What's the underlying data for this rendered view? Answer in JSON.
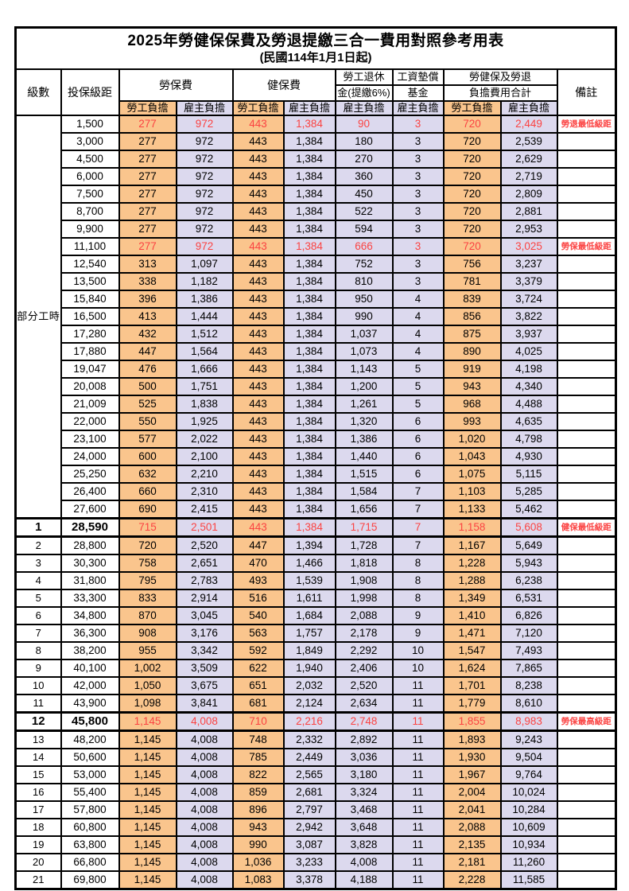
{
  "title": "2025年勞健保保費及勞退提繳三合一費用對照參考用表",
  "subtitle": "(民國114年1月1日起)",
  "colors": {
    "employee_bg": "#FAC58D",
    "employer_bg": "#DCD9EE",
    "highlight_red": "#FB4342",
    "border": "#000000"
  },
  "header": {
    "level": "級數",
    "bracket": "投保級距",
    "labor_ins": "勞保費",
    "health_ins": "健保費",
    "pension_line1": "勞工退休",
    "pension_line2": "金(提繳6%)",
    "wage_fund_line1": "工資墊償",
    "wage_fund_line2": "基金",
    "total_line1": "勞健保及勞退",
    "total_line2": "負擔費用合計",
    "note": "備註",
    "employee": "勞工負擔",
    "employer": "雇主負擔"
  },
  "part_time": {
    "label": "部分工時",
    "span": 23
  },
  "rows": [
    {
      "level": "",
      "bracket": "1,500",
      "v": [
        "277",
        "972",
        "443",
        "1,384",
        "90",
        "3",
        "720",
        "2,449"
      ],
      "note": "勞退最低級距",
      "red": true,
      "bold": false
    },
    {
      "level": "",
      "bracket": "3,000",
      "v": [
        "277",
        "972",
        "443",
        "1,384",
        "180",
        "3",
        "720",
        "2,539"
      ],
      "note": "",
      "red": false,
      "bold": false
    },
    {
      "level": "",
      "bracket": "4,500",
      "v": [
        "277",
        "972",
        "443",
        "1,384",
        "270",
        "3",
        "720",
        "2,629"
      ],
      "note": "",
      "red": false,
      "bold": false
    },
    {
      "level": "",
      "bracket": "6,000",
      "v": [
        "277",
        "972",
        "443",
        "1,384",
        "360",
        "3",
        "720",
        "2,719"
      ],
      "note": "",
      "red": false,
      "bold": false
    },
    {
      "level": "",
      "bracket": "7,500",
      "v": [
        "277",
        "972",
        "443",
        "1,384",
        "450",
        "3",
        "720",
        "2,809"
      ],
      "note": "",
      "red": false,
      "bold": false
    },
    {
      "level": "",
      "bracket": "8,700",
      "v": [
        "277",
        "972",
        "443",
        "1,384",
        "522",
        "3",
        "720",
        "2,881"
      ],
      "note": "",
      "red": false,
      "bold": false
    },
    {
      "level": "",
      "bracket": "9,900",
      "v": [
        "277",
        "972",
        "443",
        "1,384",
        "594",
        "3",
        "720",
        "2,953"
      ],
      "note": "",
      "red": false,
      "bold": false
    },
    {
      "level": "",
      "bracket": "11,100",
      "v": [
        "277",
        "972",
        "443",
        "1,384",
        "666",
        "3",
        "720",
        "3,025"
      ],
      "note": "勞保最低級距",
      "red": true,
      "bold": false
    },
    {
      "level": "",
      "bracket": "12,540",
      "v": [
        "313",
        "1,097",
        "443",
        "1,384",
        "752",
        "3",
        "756",
        "3,237"
      ],
      "note": "",
      "red": false,
      "bold": false
    },
    {
      "level": "",
      "bracket": "13,500",
      "v": [
        "338",
        "1,182",
        "443",
        "1,384",
        "810",
        "3",
        "781",
        "3,379"
      ],
      "note": "",
      "red": false,
      "bold": false
    },
    {
      "level": "",
      "bracket": "15,840",
      "v": [
        "396",
        "1,386",
        "443",
        "1,384",
        "950",
        "4",
        "839",
        "3,724"
      ],
      "note": "",
      "red": false,
      "bold": false
    },
    {
      "level": "",
      "bracket": "16,500",
      "v": [
        "413",
        "1,444",
        "443",
        "1,384",
        "990",
        "4",
        "856",
        "3,822"
      ],
      "note": "",
      "red": false,
      "bold": false
    },
    {
      "level": "",
      "bracket": "17,280",
      "v": [
        "432",
        "1,512",
        "443",
        "1,384",
        "1,037",
        "4",
        "875",
        "3,937"
      ],
      "note": "",
      "red": false,
      "bold": false
    },
    {
      "level": "",
      "bracket": "17,880",
      "v": [
        "447",
        "1,564",
        "443",
        "1,384",
        "1,073",
        "4",
        "890",
        "4,025"
      ],
      "note": "",
      "red": false,
      "bold": false
    },
    {
      "level": "",
      "bracket": "19,047",
      "v": [
        "476",
        "1,666",
        "443",
        "1,384",
        "1,143",
        "5",
        "919",
        "4,198"
      ],
      "note": "",
      "red": false,
      "bold": false
    },
    {
      "level": "",
      "bracket": "20,008",
      "v": [
        "500",
        "1,751",
        "443",
        "1,384",
        "1,200",
        "5",
        "943",
        "4,340"
      ],
      "note": "",
      "red": false,
      "bold": false
    },
    {
      "level": "",
      "bracket": "21,009",
      "v": [
        "525",
        "1,838",
        "443",
        "1,384",
        "1,261",
        "5",
        "968",
        "4,488"
      ],
      "note": "",
      "red": false,
      "bold": false
    },
    {
      "level": "",
      "bracket": "22,000",
      "v": [
        "550",
        "1,925",
        "443",
        "1,384",
        "1,320",
        "6",
        "993",
        "4,635"
      ],
      "note": "",
      "red": false,
      "bold": false
    },
    {
      "level": "",
      "bracket": "23,100",
      "v": [
        "577",
        "2,022",
        "443",
        "1,384",
        "1,386",
        "6",
        "1,020",
        "4,798"
      ],
      "note": "",
      "red": false,
      "bold": false
    },
    {
      "level": "",
      "bracket": "24,000",
      "v": [
        "600",
        "2,100",
        "443",
        "1,384",
        "1,440",
        "6",
        "1,043",
        "4,930"
      ],
      "note": "",
      "red": false,
      "bold": false
    },
    {
      "level": "",
      "bracket": "25,250",
      "v": [
        "632",
        "2,210",
        "443",
        "1,384",
        "1,515",
        "6",
        "1,075",
        "5,115"
      ],
      "note": "",
      "red": false,
      "bold": false
    },
    {
      "level": "",
      "bracket": "26,400",
      "v": [
        "660",
        "2,310",
        "443",
        "1,384",
        "1,584",
        "7",
        "1,103",
        "5,285"
      ],
      "note": "",
      "red": false,
      "bold": false
    },
    {
      "level": "",
      "bracket": "27,600",
      "v": [
        "690",
        "2,415",
        "443",
        "1,384",
        "1,656",
        "7",
        "1,133",
        "5,462"
      ],
      "note": "",
      "red": false,
      "bold": false
    },
    {
      "level": "1",
      "bracket": "28,590",
      "v": [
        "715",
        "2,501",
        "443",
        "1,384",
        "1,715",
        "7",
        "1,158",
        "5,608"
      ],
      "note": "健保最低級距",
      "red": true,
      "bold": true
    },
    {
      "level": "2",
      "bracket": "28,800",
      "v": [
        "720",
        "2,520",
        "447",
        "1,394",
        "1,728",
        "7",
        "1,167",
        "5,649"
      ],
      "note": "",
      "red": false,
      "bold": false
    },
    {
      "level": "3",
      "bracket": "30,300",
      "v": [
        "758",
        "2,651",
        "470",
        "1,466",
        "1,818",
        "8",
        "1,228",
        "5,943"
      ],
      "note": "",
      "red": false,
      "bold": false
    },
    {
      "level": "4",
      "bracket": "31,800",
      "v": [
        "795",
        "2,783",
        "493",
        "1,539",
        "1,908",
        "8",
        "1,288",
        "6,238"
      ],
      "note": "",
      "red": false,
      "bold": false
    },
    {
      "level": "5",
      "bracket": "33,300",
      "v": [
        "833",
        "2,914",
        "516",
        "1,611",
        "1,998",
        "8",
        "1,349",
        "6,531"
      ],
      "note": "",
      "red": false,
      "bold": false
    },
    {
      "level": "6",
      "bracket": "34,800",
      "v": [
        "870",
        "3,045",
        "540",
        "1,684",
        "2,088",
        "9",
        "1,410",
        "6,826"
      ],
      "note": "",
      "red": false,
      "bold": false
    },
    {
      "level": "7",
      "bracket": "36,300",
      "v": [
        "908",
        "3,176",
        "563",
        "1,757",
        "2,178",
        "9",
        "1,471",
        "7,120"
      ],
      "note": "",
      "red": false,
      "bold": false
    },
    {
      "level": "8",
      "bracket": "38,200",
      "v": [
        "955",
        "3,342",
        "592",
        "1,849",
        "2,292",
        "10",
        "1,547",
        "7,493"
      ],
      "note": "",
      "red": false,
      "bold": false
    },
    {
      "level": "9",
      "bracket": "40,100",
      "v": [
        "1,002",
        "3,509",
        "622",
        "1,940",
        "2,406",
        "10",
        "1,624",
        "7,865"
      ],
      "note": "",
      "red": false,
      "bold": false
    },
    {
      "level": "10",
      "bracket": "42,000",
      "v": [
        "1,050",
        "3,675",
        "651",
        "2,032",
        "2,520",
        "11",
        "1,701",
        "8,238"
      ],
      "note": "",
      "red": false,
      "bold": false
    },
    {
      "level": "11",
      "bracket": "43,900",
      "v": [
        "1,098",
        "3,841",
        "681",
        "2,124",
        "2,634",
        "11",
        "1,779",
        "8,610"
      ],
      "note": "",
      "red": false,
      "bold": false
    },
    {
      "level": "12",
      "bracket": "45,800",
      "v": [
        "1,145",
        "4,008",
        "710",
        "2,216",
        "2,748",
        "11",
        "1,855",
        "8,983"
      ],
      "note": "勞保最高級距",
      "red": true,
      "bold": true
    },
    {
      "level": "13",
      "bracket": "48,200",
      "v": [
        "1,145",
        "4,008",
        "748",
        "2,332",
        "2,892",
        "11",
        "1,893",
        "9,243"
      ],
      "note": "",
      "red": false,
      "bold": false
    },
    {
      "level": "14",
      "bracket": "50,600",
      "v": [
        "1,145",
        "4,008",
        "785",
        "2,449",
        "3,036",
        "11",
        "1,930",
        "9,504"
      ],
      "note": "",
      "red": false,
      "bold": false
    },
    {
      "level": "15",
      "bracket": "53,000",
      "v": [
        "1,145",
        "4,008",
        "822",
        "2,565",
        "3,180",
        "11",
        "1,967",
        "9,764"
      ],
      "note": "",
      "red": false,
      "bold": false
    },
    {
      "level": "16",
      "bracket": "55,400",
      "v": [
        "1,145",
        "4,008",
        "859",
        "2,681",
        "3,324",
        "11",
        "2,004",
        "10,024"
      ],
      "note": "",
      "red": false,
      "bold": false
    },
    {
      "level": "17",
      "bracket": "57,800",
      "v": [
        "1,145",
        "4,008",
        "896",
        "2,797",
        "3,468",
        "11",
        "2,041",
        "10,284"
      ],
      "note": "",
      "red": false,
      "bold": false
    },
    {
      "level": "18",
      "bracket": "60,800",
      "v": [
        "1,145",
        "4,008",
        "943",
        "2,942",
        "3,648",
        "11",
        "2,088",
        "10,609"
      ],
      "note": "",
      "red": false,
      "bold": false
    },
    {
      "level": "19",
      "bracket": "63,800",
      "v": [
        "1,145",
        "4,008",
        "990",
        "3,087",
        "3,828",
        "11",
        "2,135",
        "10,934"
      ],
      "note": "",
      "red": false,
      "bold": false
    },
    {
      "level": "20",
      "bracket": "66,800",
      "v": [
        "1,145",
        "4,008",
        "1,036",
        "3,233",
        "4,008",
        "11",
        "2,181",
        "11,260"
      ],
      "note": "",
      "red": false,
      "bold": false
    },
    {
      "level": "21",
      "bracket": "69,800",
      "v": [
        "1,145",
        "4,008",
        "1,083",
        "3,378",
        "4,188",
        "11",
        "2,228",
        "11,585"
      ],
      "note": "",
      "red": false,
      "bold": false
    }
  ],
  "value_column_backgrounds": [
    "employee",
    "employer",
    "employee",
    "employer",
    "employer",
    "employer",
    "employee",
    "employer"
  ]
}
